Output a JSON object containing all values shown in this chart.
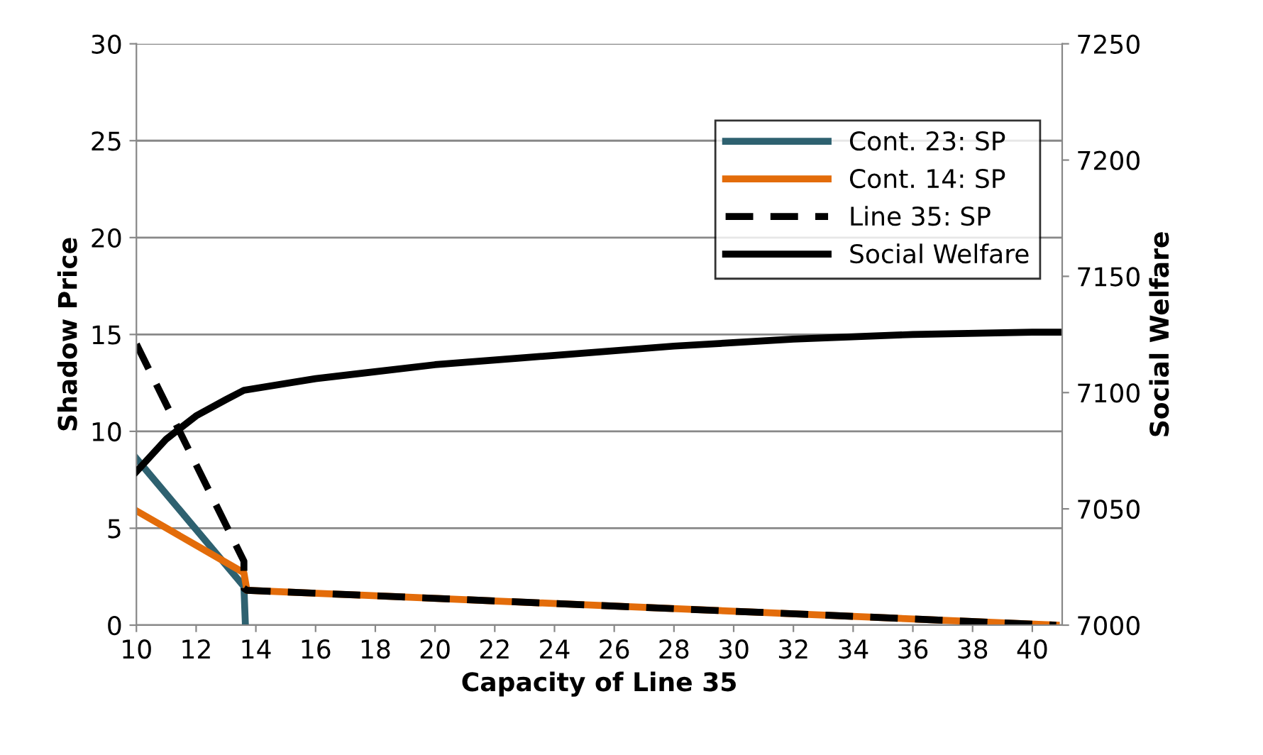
{
  "chart_data": {
    "type": "line",
    "xlabel": "Capacity of Line 35",
    "ylabel": "Shadow Price",
    "y2label": "Social Welfare",
    "xlim": [
      10,
      41
    ],
    "xticks": [
      10,
      12,
      14,
      16,
      18,
      20,
      22,
      24,
      26,
      28,
      30,
      32,
      34,
      36,
      38,
      40
    ],
    "ylim": [
      0,
      30
    ],
    "yticks": [
      0,
      5,
      10,
      15,
      20,
      25,
      30
    ],
    "y2lim": [
      7000,
      7250
    ],
    "y2ticks": [
      7000,
      7050,
      7100,
      7150,
      7200,
      7250
    ],
    "grid": "y",
    "legend": "top right",
    "series": [
      {
        "name": "Cont. 23: SP",
        "color": "#2e6170",
        "line_style": "solid",
        "x": [
          10,
          13.6,
          13.65
        ],
        "values": [
          8.6,
          2.0,
          0
        ]
      },
      {
        "name": "Cont. 14: SP",
        "color": "#e36c0a",
        "line_style": "solid",
        "x": [
          10,
          13.6,
          13.7,
          40.8
        ],
        "values": [
          5.9,
          2.7,
          1.8,
          0
        ]
      },
      {
        "name": "Line 35: SP",
        "color": "#000000",
        "line_style": "dashed",
        "x": [
          10,
          13.6,
          13.6,
          13.7,
          40.8
        ],
        "values": [
          14.5,
          3.3,
          1.9,
          1.8,
          0
        ]
      },
      {
        "name": "Social Welfare",
        "color": "#000000",
        "line_style": "solid",
        "axis": "y2",
        "x": [
          10,
          11,
          12,
          13,
          13.6,
          16,
          20,
          24,
          28,
          32,
          36,
          40,
          41
        ],
        "values": [
          7066,
          7080,
          7090,
          7097,
          7101,
          7106,
          7112,
          7116,
          7120,
          7123,
          7125,
          7126,
          7126
        ]
      }
    ]
  }
}
